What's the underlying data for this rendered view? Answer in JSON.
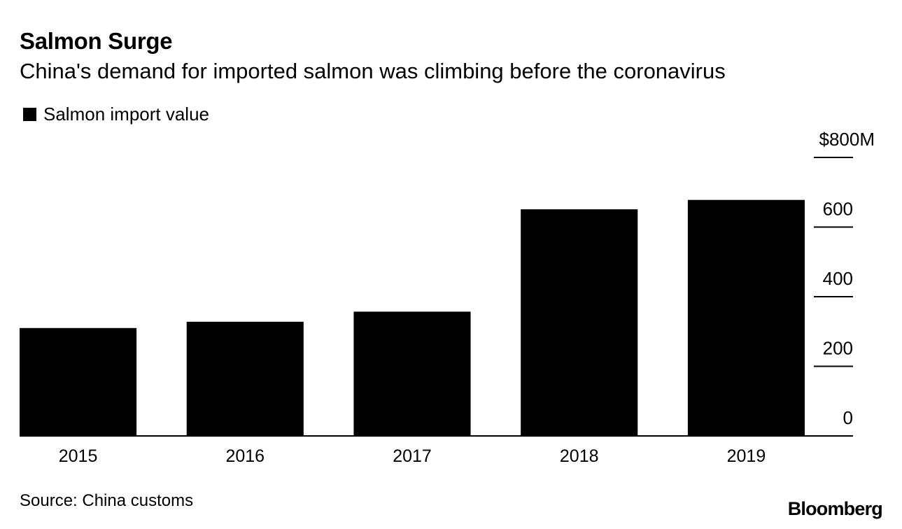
{
  "header": {
    "title": "Salmon Surge",
    "subtitle": "China's demand for imported salmon was climbing before the coronavirus"
  },
  "legend": {
    "label": "Salmon import value"
  },
  "footer": {
    "source": "Source: China customs",
    "brand": "Bloomberg"
  },
  "colors": {
    "bar": "#000000",
    "axis": "#000000"
  },
  "chart_data": {
    "type": "bar",
    "title": "Salmon Surge",
    "subtitle": "China's demand for imported salmon was climbing before the coronavirus",
    "categories": [
      "2015",
      "2016",
      "2017",
      "2018",
      "2019"
    ],
    "series": [
      {
        "name": "Salmon import value",
        "values": [
          310,
          328,
          357,
          651,
          678
        ]
      }
    ],
    "ylim": [
      0,
      800
    ],
    "yticks": [
      0,
      200,
      400,
      600,
      800
    ],
    "ytick_labels": [
      "0",
      "200",
      "400",
      "600",
      "$800M"
    ],
    "y_axis_side": "right",
    "xlabel": "",
    "ylabel": "",
    "grid": false,
    "legend_position": "top-left"
  }
}
